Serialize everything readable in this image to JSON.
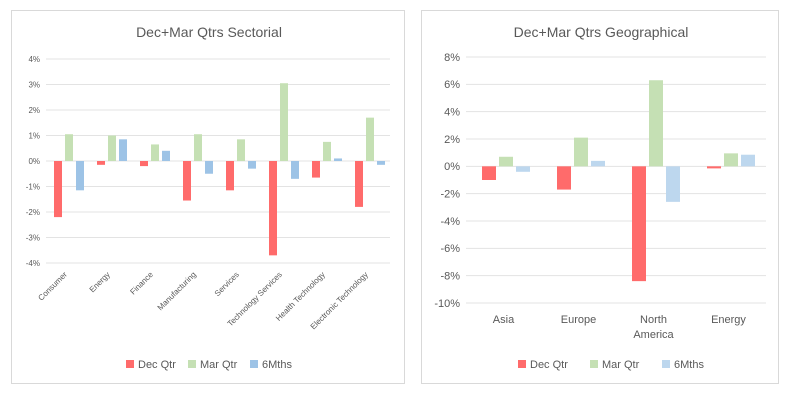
{
  "chart_data": [
    {
      "type": "bar",
      "title": "Dec+Mar Qtrs Sectorial",
      "categories": [
        "Consumer",
        "Energy",
        "Finance",
        "Manufacturing",
        "Services",
        "Technology Services",
        "Health Technology",
        "Electronic Technology"
      ],
      "series": [
        {
          "name": "Dec Qtr",
          "color": "#ff6b6b",
          "values": [
            -2.2,
            -0.15,
            -0.2,
            -1.55,
            -1.15,
            -3.7,
            -0.65,
            -1.8
          ]
        },
        {
          "name": "Mar Qtr",
          "color": "#c5e0b4",
          "values": [
            1.05,
            1.0,
            0.65,
            1.05,
            0.85,
            3.05,
            0.75,
            1.7
          ]
        },
        {
          "name": "6Mths",
          "color": "#9dc3e6",
          "values": [
            -1.15,
            0.85,
            0.4,
            -0.5,
            -0.3,
            -0.7,
            0.1,
            -0.15
          ]
        }
      ],
      "ylim": [
        -4,
        4
      ],
      "ytick_labels": [
        "4%",
        "3%",
        "2%",
        "1%",
        "0%",
        "-1%",
        "-2%",
        "-3%",
        "-4%"
      ],
      "grid": true,
      "legend": "bottom"
    },
    {
      "type": "bar",
      "title": "Dec+Mar Qtrs Geographical",
      "categories": [
        "Asia",
        "Europe",
        "North America",
        "Energy"
      ],
      "series": [
        {
          "name": "Dec Qtr",
          "color": "#ff6b6b",
          "values": [
            -1.0,
            -1.7,
            -8.4,
            -0.15
          ]
        },
        {
          "name": "Mar Qtr",
          "color": "#c5e0b4",
          "values": [
            0.7,
            2.1,
            6.3,
            0.95
          ]
        },
        {
          "name": "6Mths",
          "color": "#bdd7ee",
          "values": [
            -0.4,
            0.4,
            -2.6,
            0.85
          ]
        }
      ],
      "ylim": [
        -10,
        8
      ],
      "ytick_labels": [
        "8%",
        "6%",
        "4%",
        "2%",
        "0%",
        "-2%",
        "-4%",
        "-6%",
        "-8%",
        "-10%"
      ],
      "grid": true,
      "legend": "bottom"
    }
  ]
}
